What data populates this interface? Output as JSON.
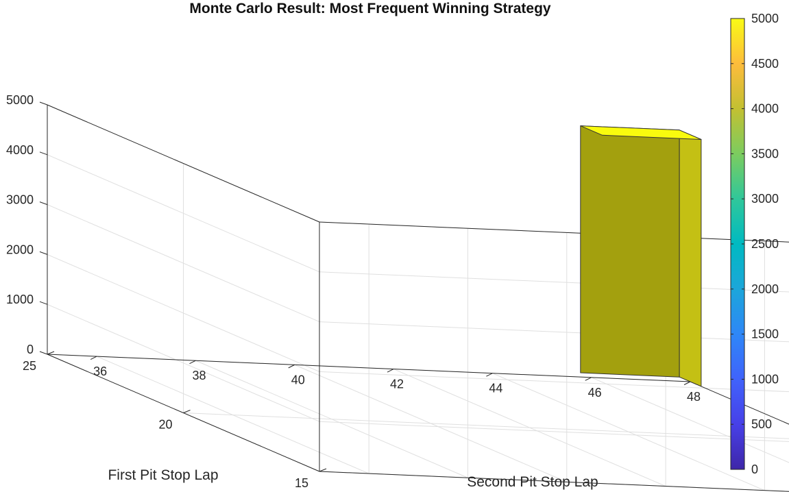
{
  "chart_data": {
    "type": "bar3",
    "title": "Monte Carlo Result: Most Frequent Winning Strategy",
    "xlabel": "Second Pit Stop Lap",
    "ylabel": "First Pit Stop Lap",
    "zlabel": "",
    "xlim": [
      35,
      48
    ],
    "ylim": [
      15,
      25
    ],
    "zlim": [
      0,
      5000
    ],
    "xticks": [
      "36",
      "38",
      "40",
      "42",
      "44",
      "46",
      "48"
    ],
    "yticks": [
      "15",
      "20",
      "25"
    ],
    "zticks": [
      "0",
      "1000",
      "2000",
      "3000",
      "4000",
      "5000"
    ],
    "bars": [
      {
        "x": 47,
        "y": 25,
        "value": 4950
      }
    ],
    "colorbar": {
      "colormap": "parula",
      "ticks": [
        "0",
        "500",
        "1000",
        "1500",
        "2000",
        "2500",
        "3000",
        "3500",
        "4000",
        "4500",
        "5000"
      ],
      "range": [
        0,
        5000
      ]
    },
    "grid": true,
    "colors": {
      "bar_top": "#f9fb0e",
      "bar_front": "#a3a00e",
      "bar_side": "#c4c014",
      "axis": "#262626",
      "grid": "#dfdfdf"
    }
  }
}
